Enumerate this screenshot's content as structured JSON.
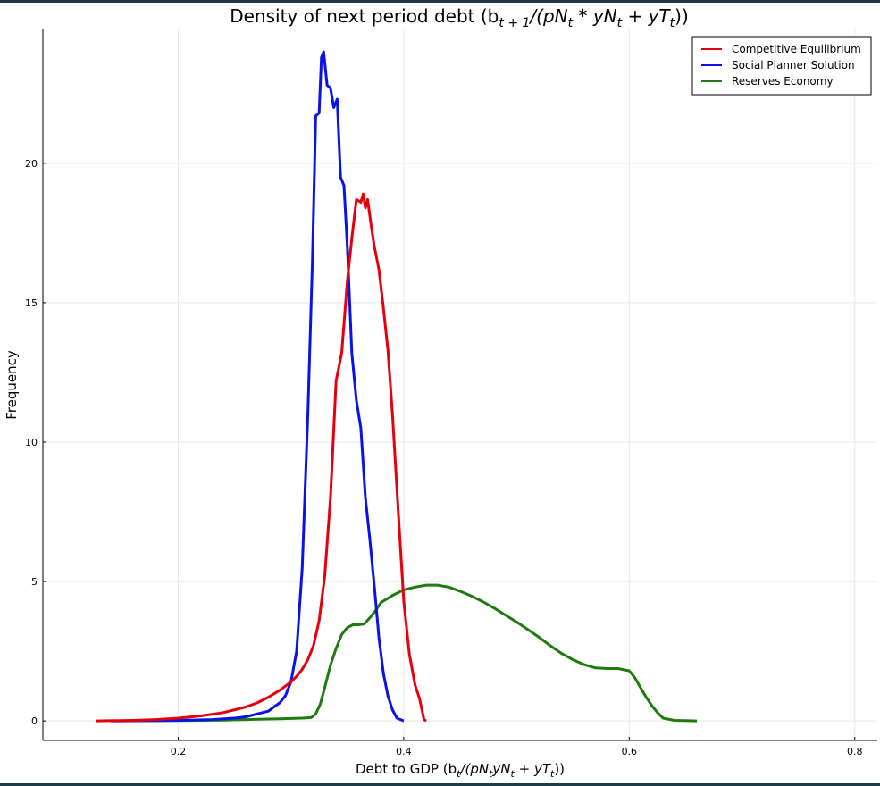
{
  "chart_data": {
    "type": "line",
    "title": "Density of next period debt (b_{t+1}/(pN_t * yN_t + yT_t))",
    "title_parts": {
      "main": "Density of next period debt (b",
      "sub1": "t + 1",
      "mid": "/(pN",
      "sub2": "t",
      "mid2": " * yN",
      "sub3": "t",
      "mid3": " + yT",
      "sub4": "t",
      "end": "))"
    },
    "xlabel": "Debt to GDP (b_t/(pN_t yN_t + yT_t))",
    "xlabel_parts": {
      "main": "Debt to GDP (b",
      "sub1": "t",
      "mid": "/(pN",
      "sub2": "t",
      "mid2": "yN",
      "sub3": "t",
      "mid3": " + yT",
      "sub4": "t",
      "end": "))"
    },
    "ylabel": "Frequency",
    "xlim": [
      0.08,
      0.82
    ],
    "ylim": [
      -0.7,
      24.8
    ],
    "x_ticks": [
      0.2,
      0.4,
      0.6,
      0.8
    ],
    "x_tick_labels": [
      "0.2",
      "0.4",
      "0.6",
      "0.8"
    ],
    "y_ticks": [
      0,
      5,
      10,
      15,
      20
    ],
    "y_tick_labels": [
      "0",
      "5",
      "10",
      "15",
      "20"
    ],
    "grid": true,
    "legend_position": "top-right",
    "series": [
      {
        "name": "Competitive Equilibrium",
        "color": "#e6000d",
        "points": [
          [
            0.127,
            0
          ],
          [
            0.16,
            0.02
          ],
          [
            0.18,
            0.05
          ],
          [
            0.2,
            0.1
          ],
          [
            0.22,
            0.18
          ],
          [
            0.24,
            0.3
          ],
          [
            0.26,
            0.5
          ],
          [
            0.27,
            0.65
          ],
          [
            0.28,
            0.85
          ],
          [
            0.29,
            1.1
          ],
          [
            0.3,
            1.4
          ],
          [
            0.305,
            1.6
          ],
          [
            0.31,
            1.85
          ],
          [
            0.315,
            2.2
          ],
          [
            0.32,
            2.7
          ],
          [
            0.325,
            3.6
          ],
          [
            0.33,
            5.2
          ],
          [
            0.335,
            8
          ],
          [
            0.34,
            12.2
          ],
          [
            0.345,
            13.2
          ],
          [
            0.35,
            15.8
          ],
          [
            0.354,
            17.3
          ],
          [
            0.358,
            18.7
          ],
          [
            0.362,
            18.6
          ],
          [
            0.364,
            18.9
          ],
          [
            0.366,
            18.4
          ],
          [
            0.368,
            18.7
          ],
          [
            0.371,
            17.8
          ],
          [
            0.374,
            17
          ],
          [
            0.378,
            16.2
          ],
          [
            0.382,
            14.8
          ],
          [
            0.386,
            13.3
          ],
          [
            0.39,
            11
          ],
          [
            0.395,
            7.6
          ],
          [
            0.4,
            4.3
          ],
          [
            0.405,
            2.4
          ],
          [
            0.41,
            1.3
          ],
          [
            0.414,
            0.8
          ],
          [
            0.418,
            0.05
          ],
          [
            0.42,
            0
          ]
        ]
      },
      {
        "name": "Social Planner Solution",
        "color": "#0a13e6",
        "points": [
          [
            0.14,
            0
          ],
          [
            0.2,
            0.02
          ],
          [
            0.23,
            0.05
          ],
          [
            0.25,
            0.1
          ],
          [
            0.26,
            0.15
          ],
          [
            0.27,
            0.25
          ],
          [
            0.28,
            0.35
          ],
          [
            0.285,
            0.5
          ],
          [
            0.29,
            0.65
          ],
          [
            0.295,
            0.9
          ],
          [
            0.3,
            1.4
          ],
          [
            0.305,
            2.5
          ],
          [
            0.31,
            5.5
          ],
          [
            0.315,
            11
          ],
          [
            0.319,
            16.5
          ],
          [
            0.322,
            21.7
          ],
          [
            0.325,
            21.8
          ],
          [
            0.327,
            23.8
          ],
          [
            0.329,
            24
          ],
          [
            0.332,
            22.8
          ],
          [
            0.335,
            22.7
          ],
          [
            0.338,
            22
          ],
          [
            0.341,
            22.3
          ],
          [
            0.344,
            19.5
          ],
          [
            0.347,
            19.2
          ],
          [
            0.35,
            17
          ],
          [
            0.354,
            13.2
          ],
          [
            0.358,
            11.5
          ],
          [
            0.362,
            10.5
          ],
          [
            0.366,
            8
          ],
          [
            0.37,
            6.5
          ],
          [
            0.374,
            4.8
          ],
          [
            0.378,
            3
          ],
          [
            0.382,
            1.7
          ],
          [
            0.386,
            0.9
          ],
          [
            0.39,
            0.4
          ],
          [
            0.394,
            0.1
          ],
          [
            0.4,
            0
          ]
        ]
      },
      {
        "name": "Reserves Economy",
        "color": "#1f7a0f",
        "points": [
          [
            0.145,
            0
          ],
          [
            0.2,
            0.01
          ],
          [
            0.24,
            0.03
          ],
          [
            0.27,
            0.06
          ],
          [
            0.29,
            0.08
          ],
          [
            0.31,
            0.1
          ],
          [
            0.318,
            0.12
          ],
          [
            0.322,
            0.25
          ],
          [
            0.326,
            0.6
          ],
          [
            0.33,
            1.2
          ],
          [
            0.335,
            2
          ],
          [
            0.34,
            2.6
          ],
          [
            0.345,
            3.1
          ],
          [
            0.35,
            3.35
          ],
          [
            0.355,
            3.45
          ],
          [
            0.36,
            3.45
          ],
          [
            0.365,
            3.48
          ],
          [
            0.37,
            3.7
          ],
          [
            0.375,
            3.95
          ],
          [
            0.38,
            4.25
          ],
          [
            0.39,
            4.5
          ],
          [
            0.4,
            4.7
          ],
          [
            0.41,
            4.8
          ],
          [
            0.42,
            4.87
          ],
          [
            0.43,
            4.87
          ],
          [
            0.44,
            4.8
          ],
          [
            0.45,
            4.65
          ],
          [
            0.46,
            4.48
          ],
          [
            0.47,
            4.28
          ],
          [
            0.48,
            4.05
          ],
          [
            0.49,
            3.8
          ],
          [
            0.5,
            3.55
          ],
          [
            0.51,
            3.28
          ],
          [
            0.52,
            3
          ],
          [
            0.53,
            2.7
          ],
          [
            0.54,
            2.42
          ],
          [
            0.55,
            2.2
          ],
          [
            0.56,
            2.02
          ],
          [
            0.57,
            1.9
          ],
          [
            0.58,
            1.88
          ],
          [
            0.59,
            1.88
          ],
          [
            0.6,
            1.8
          ],
          [
            0.605,
            1.55
          ],
          [
            0.61,
            1.2
          ],
          [
            0.615,
            0.85
          ],
          [
            0.62,
            0.55
          ],
          [
            0.625,
            0.3
          ],
          [
            0.63,
            0.1
          ],
          [
            0.64,
            0.02
          ],
          [
            0.66,
            0
          ]
        ]
      }
    ]
  }
}
